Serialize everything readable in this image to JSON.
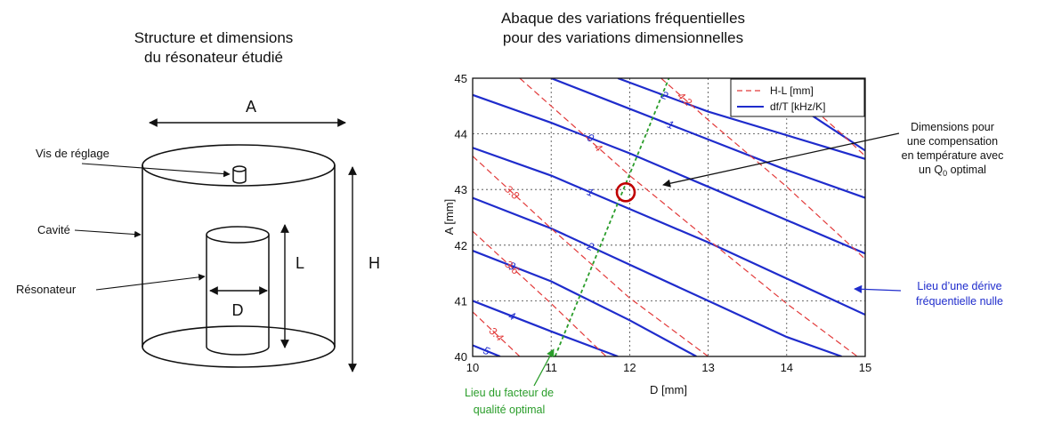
{
  "left_panel": {
    "title_line1": "Structure et dimensions",
    "title_line2": "du résonateur étudié",
    "labels": {
      "A": "A",
      "H": "H",
      "L": "L",
      "D": "D",
      "screw": "Vis de réglage",
      "cavity": "Cavité",
      "resonator": "Résonateur"
    }
  },
  "right_panel": {
    "title_line1": "Abaque des variations fréquentielles",
    "title_line2": "pour des variations dimensionnelles",
    "annotation_optimum": [
      "Dimensions pour",
      "une compensation",
      "en température avec"
    ],
    "annotation_optimum_last_prefix": "un Q",
    "annotation_optimum_last_sub": "0",
    "annotation_optimum_last_suffix": " optimal",
    "annotation_zero_drift": [
      "Lieu d’une dérive",
      "fréquentielle nulle"
    ],
    "annotation_q_optimal": [
      "Lieu du facteur de",
      "qualité optimal"
    ],
    "colors": {
      "red": "#e23a3a",
      "blue": "#1f2ccc",
      "green": "#2a9d2a",
      "circle": "#c00000"
    }
  },
  "chart_data": {
    "type": "line",
    "xlabel": "D [mm]",
    "ylabel": "A [mm]",
    "xlim": [
      10,
      15
    ],
    "ylim": [
      40,
      45
    ],
    "x_ticks": [
      "10",
      "11",
      "12",
      "13",
      "14",
      "15"
    ],
    "y_ticks": [
      "40",
      "41",
      "42",
      "43",
      "44",
      "45"
    ],
    "grid": true,
    "legend_position": "top-right",
    "legend": [
      {
        "name": "H-L [mm]",
        "style": "dashed",
        "color": "#e23a3a"
      },
      {
        "name": "df/T [kHz/K]",
        "style": "solid",
        "color": "#1f2ccc"
      }
    ],
    "series": [
      {
        "group": "df/T",
        "label": "-2",
        "points": [
          [
            11.85,
            45.0
          ],
          [
            13.0,
            44.4
          ],
          [
            15.0,
            43.55
          ]
        ]
      },
      {
        "group": "df/T",
        "label": "-1",
        "points": [
          [
            11.0,
            45.0
          ],
          [
            12.0,
            44.45
          ],
          [
            13.0,
            43.9
          ],
          [
            14.0,
            43.35
          ],
          [
            15.0,
            42.85
          ]
        ]
      },
      {
        "group": "df/T",
        "label": "0",
        "points": [
          [
            10.0,
            44.7
          ],
          [
            11.0,
            44.2
          ],
          [
            12.0,
            43.65
          ],
          [
            13.0,
            43.05
          ],
          [
            14.0,
            42.45
          ],
          [
            15.0,
            41.85
          ]
        ]
      },
      {
        "group": "df/T",
        "label": "1",
        "points": [
          [
            10.0,
            43.75
          ],
          [
            11.0,
            43.25
          ],
          [
            12.0,
            42.65
          ],
          [
            13.0,
            42.05
          ],
          [
            14.0,
            41.4
          ],
          [
            15.0,
            40.75
          ]
        ]
      },
      {
        "group": "df/T",
        "label": "2",
        "points": [
          [
            10.0,
            42.85
          ],
          [
            11.0,
            42.3
          ],
          [
            12.0,
            41.65
          ],
          [
            13.0,
            41.0
          ],
          [
            14.0,
            40.35
          ],
          [
            14.7,
            40.0
          ]
        ]
      },
      {
        "group": "df/T",
        "label": "3",
        "points": [
          [
            10.0,
            41.9
          ],
          [
            11.0,
            41.35
          ],
          [
            12.0,
            40.65
          ],
          [
            12.85,
            40.0
          ]
        ]
      },
      {
        "group": "df/T",
        "label": "4",
        "points": [
          [
            10.0,
            41.0
          ],
          [
            11.0,
            40.45
          ],
          [
            11.85,
            40.0
          ]
        ]
      },
      {
        "group": "df/T",
        "label": "5",
        "points": [
          [
            10.0,
            40.2
          ],
          [
            10.35,
            40.0
          ]
        ]
      },
      {
        "group": "df/T",
        "label": "-3",
        "points": [
          [
            13.6,
            45.0
          ],
          [
            14.3,
            44.35
          ],
          [
            15.0,
            43.7
          ]
        ]
      },
      {
        "group": "H-L",
        "label": "4.4",
        "points": [
          [
            13.9,
            45.0
          ],
          [
            14.7,
            44.0
          ],
          [
            15.0,
            43.6
          ]
        ]
      },
      {
        "group": "H-L",
        "label": "4.2",
        "points": [
          [
            12.4,
            45.0
          ],
          [
            13.0,
            44.25
          ],
          [
            14.0,
            43.05
          ],
          [
            15.0,
            41.75
          ]
        ]
      },
      {
        "group": "H-L",
        "label": "4",
        "points": [
          [
            10.6,
            45.0
          ],
          [
            11.2,
            44.25
          ],
          [
            12.0,
            43.25
          ],
          [
            13.0,
            42.1
          ],
          [
            14.0,
            40.95
          ],
          [
            14.9,
            40.0
          ]
        ]
      },
      {
        "group": "H-L",
        "label": "3.8",
        "points": [
          [
            10.0,
            43.6
          ],
          [
            11.0,
            42.3
          ],
          [
            12.0,
            41.05
          ],
          [
            13.0,
            40.0
          ]
        ]
      },
      {
        "group": "H-L",
        "label": "3.6",
        "points": [
          [
            10.0,
            42.25
          ],
          [
            11.0,
            40.95
          ],
          [
            11.7,
            40.0
          ]
        ]
      },
      {
        "group": "H-L",
        "label": "3.4",
        "points": [
          [
            10.0,
            40.8
          ],
          [
            10.6,
            40.0
          ]
        ]
      },
      {
        "group": "Q0",
        "label": "",
        "points": [
          [
            11.05,
            40.0
          ],
          [
            12.5,
            45.0
          ]
        ]
      }
    ],
    "optimum_point": [
      11.95,
      42.95
    ]
  }
}
